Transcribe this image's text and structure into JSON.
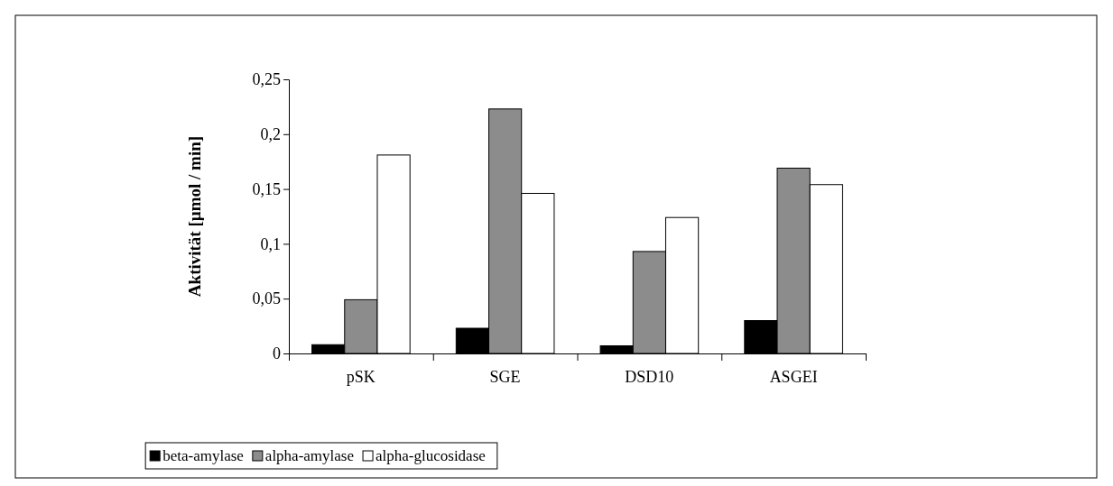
{
  "chart_data": {
    "type": "bar",
    "ylabel": "Aktivität [µmol / min]",
    "categories": [
      "pSK",
      "SGE",
      "DSD10",
      "ASGEI"
    ],
    "series": [
      {
        "name": "beta-amylase",
        "color": "#000000",
        "values": [
          0.008,
          0.023,
          0.007,
          0.03
        ]
      },
      {
        "name": "alpha-amylase",
        "color": "#8c8c8c",
        "values": [
          0.049,
          0.223,
          0.093,
          0.169
        ]
      },
      {
        "name": "alpha-glucosidase",
        "color": "#ffffff",
        "values": [
          0.181,
          0.146,
          0.124,
          0.154
        ]
      }
    ],
    "ylim": [
      0,
      0.25
    ],
    "yticks": [
      {
        "value": 0,
        "label": "0"
      },
      {
        "value": 0.05,
        "label": "0,05"
      },
      {
        "value": 0.1,
        "label": "0,1"
      },
      {
        "value": 0.15,
        "label": "0,15"
      },
      {
        "value": 0.2,
        "label": "0,2"
      },
      {
        "value": 0.25,
        "label": "0,25"
      }
    ],
    "grid": false,
    "legend": "bottom"
  }
}
